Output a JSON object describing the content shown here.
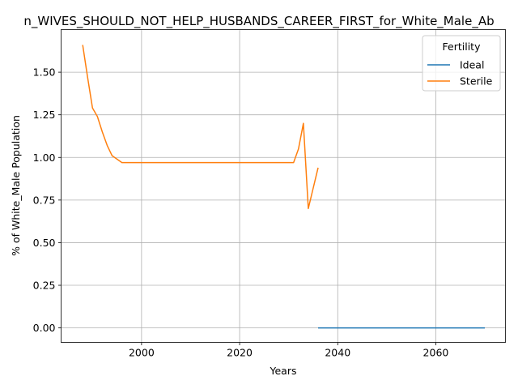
{
  "chart_data": {
    "type": "line",
    "title": "n_WIVES_SHOULD_NOT_HELP_HUSBANDS_CAREER_FIRST_for_White_Male_Ab",
    "xlabel": "Years",
    "ylabel": "% of White_Male Population",
    "xlim": [
      1983.6,
      2074.2
    ],
    "ylim": [
      -0.085,
      1.75
    ],
    "xticks": [
      2000,
      2020,
      2040,
      2060
    ],
    "xtick_labels": [
      "2000",
      "2020",
      "2040",
      "2060"
    ],
    "yticks": [
      0.0,
      0.25,
      0.5,
      0.75,
      1.0,
      1.25,
      1.5
    ],
    "ytick_labels": [
      "0.00",
      "0.25",
      "0.50",
      "0.75",
      "1.00",
      "1.25",
      "1.50"
    ],
    "grid": true,
    "legend": {
      "title": "Fertility",
      "position": "top-right"
    },
    "series": [
      {
        "name": "Ideal",
        "color": "#1f77b4",
        "x": [
          2036,
          2070
        ],
        "y": [
          0.0,
          0.0
        ]
      },
      {
        "name": "Sterile",
        "color": "#ff7f0e",
        "x": [
          1988,
          1989,
          1990,
          1991,
          1992,
          1993,
          1994,
          1995,
          1996,
          2000,
          2010,
          2020,
          2031,
          2032,
          2033,
          2034,
          2035,
          2036
        ],
        "y": [
          1.66,
          1.47,
          1.29,
          1.24,
          1.15,
          1.07,
          1.01,
          0.99,
          0.97,
          0.97,
          0.97,
          0.97,
          0.97,
          1.05,
          1.2,
          0.7,
          0.82,
          0.94
        ]
      }
    ]
  }
}
